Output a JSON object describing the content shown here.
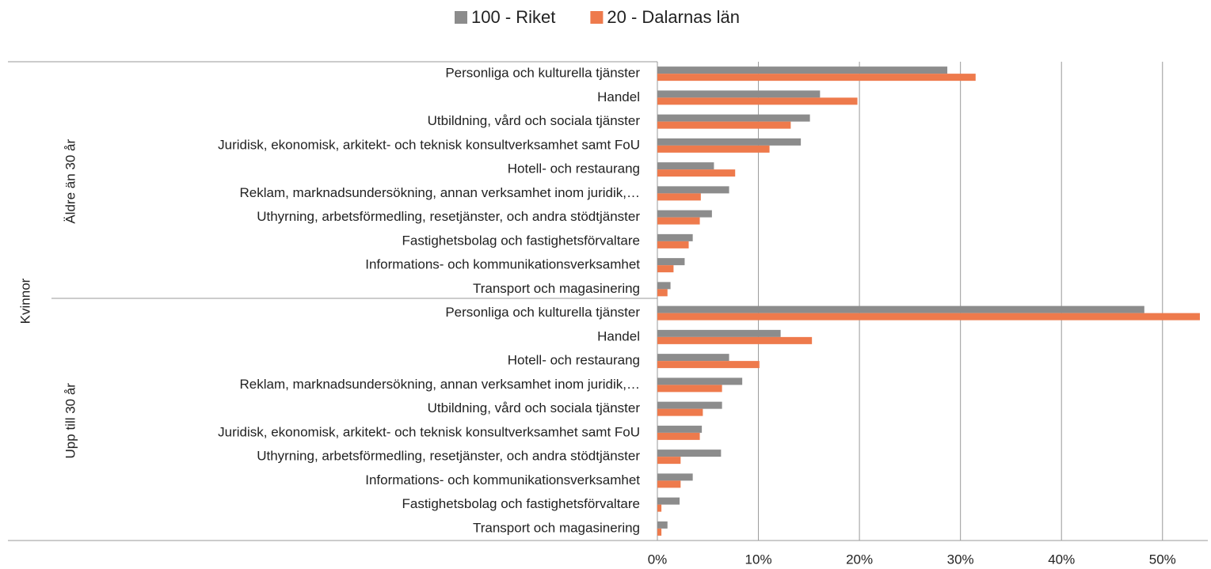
{
  "chart_data": {
    "type": "bar",
    "orientation": "horizontal",
    "outer_group": "Kvinnor",
    "groups": [
      "Äldre än 30 år",
      "Upp till 30 år"
    ],
    "categories": [
      "Personliga och kulturella tjänster",
      "Handel",
      "Utbildning, vård och sociala tjänster",
      "Juridisk, ekonomisk, arkitekt- och teknisk konsultverksamhet samt FoU",
      "Hotell- och restaurang",
      "Reklam, marknadsundersökning, annan verksamhet inom juridik,…",
      "Uthyrning, arbetsförmedling, resetjänster, och andra stödtjänster",
      "Fastighetsbolag och fastighetsförvaltare",
      "Informations- och kommunikationsverksamhet",
      "Transport och magasinering",
      "Personliga och kulturella tjänster",
      "Handel",
      "Hotell- och restaurang",
      "Reklam, marknadsundersökning, annan verksamhet inom juridik,…",
      "Utbildning, vård och sociala tjänster",
      "Juridisk, ekonomisk, arkitekt- och teknisk konsultverksamhet samt FoU",
      "Uthyrning, arbetsförmedling, resetjänster, och andra stödtjänster",
      "Informations- och kommunikationsverksamhet",
      "Fastighetsbolag och fastighetsförvaltare",
      "Transport och magasinering"
    ],
    "series": [
      {
        "name": "100 - Riket",
        "color": "#8c8c8c",
        "values": [
          28.7,
          16.1,
          15.1,
          14.2,
          5.6,
          7.1,
          5.4,
          3.5,
          2.7,
          1.3,
          48.2,
          12.2,
          7.1,
          8.4,
          6.4,
          4.4,
          6.3,
          3.5,
          2.2,
          1.0
        ]
      },
      {
        "name": "20 - Dalarnas län",
        "color": "#ee7a4c",
        "values": [
          31.5,
          19.8,
          13.2,
          11.1,
          7.7,
          4.3,
          4.2,
          3.1,
          1.6,
          1.0,
          53.7,
          15.3,
          10.1,
          6.4,
          4.5,
          4.2,
          2.3,
          2.3,
          0.4,
          0.4
        ]
      }
    ],
    "xlim": [
      0,
      54.8
    ],
    "xticks": [
      {
        "value": 0,
        "label": "0%"
      },
      {
        "value": 10,
        "label": "10%"
      },
      {
        "value": 20,
        "label": "20%"
      },
      {
        "value": 30,
        "label": "30%"
      },
      {
        "value": 40,
        "label": "40%"
      },
      {
        "value": 50,
        "label": "50%"
      }
    ],
    "grid": true,
    "legend": "top"
  }
}
